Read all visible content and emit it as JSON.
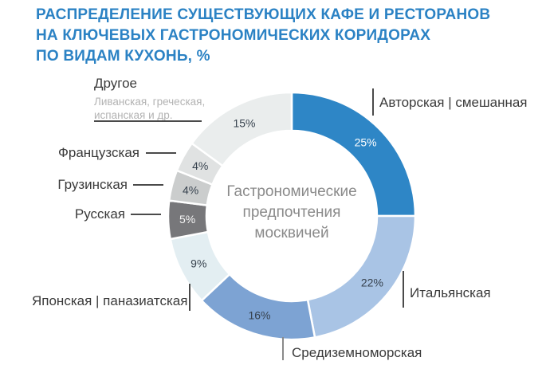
{
  "chart_data": {
    "type": "pie",
    "donut": true,
    "title": "РАСПРЕДЕЛЕНИЕ СУЩЕСТВУЮЩИХ КАФЕ И РЕСТОРАНОВ\nНА КЛЮЧЕВЫХ ГАСТРОНОМИЧЕСКИХ КОРИДОРАХ\nПО ВИДАМ КУХОНЬ, %",
    "unit": "%",
    "center_text": "Гастрономические\nпредпочтения\nмосквичей",
    "start_angle_deg": 0,
    "direction": "clockwise",
    "title_color": "#2B82C4",
    "segments": [
      {
        "label": "Авторская | смешанная",
        "value": 25,
        "color": "#2E86C6",
        "value_label_color": "#FFFFFF"
      },
      {
        "label": "Итальянская",
        "value": 22,
        "color": "#A9C4E5",
        "value_label_color": "#37424E"
      },
      {
        "label": "Средиземноморская",
        "value": 16,
        "color": "#7DA3D3",
        "value_label_color": "#37424E"
      },
      {
        "label": "Японская | паназиатская",
        "value": 9,
        "color": "#E3EEF2",
        "value_label_color": "#37424E"
      },
      {
        "label": "Русская",
        "value": 5,
        "color": "#77777A",
        "value_label_color": "#F5F5F5"
      },
      {
        "label": "Грузинская",
        "value": 4,
        "color": "#CBCDCD",
        "value_label_color": "#37424E"
      },
      {
        "label": "Французская",
        "value": 4,
        "color": "#E0E2E2",
        "value_label_color": "#37424E"
      },
      {
        "label": "Другое",
        "sublabel": "Ливанская, греческая,\nиспанская и др.",
        "value": 15,
        "color": "#EAEDED",
        "value_label_color": "#37424E"
      }
    ]
  }
}
